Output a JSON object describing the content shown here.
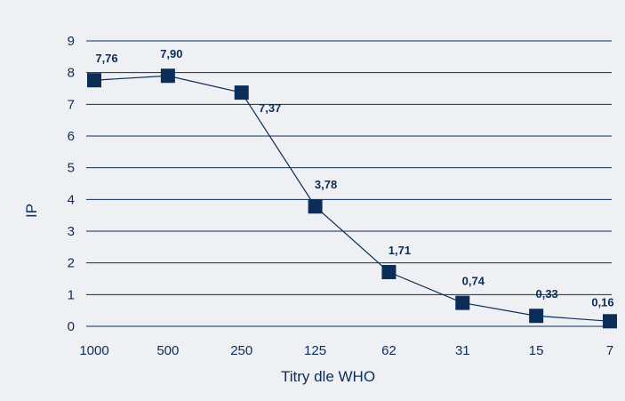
{
  "chart_data": {
    "type": "line",
    "title": "",
    "xlabel": "Titry dle WHO",
    "ylabel": "IP",
    "categories": [
      "1000",
      "500",
      "250",
      "125",
      "62",
      "31",
      "15",
      "7"
    ],
    "series": [
      {
        "values": [
          7.76,
          7.9,
          7.37,
          3.78,
          1.71,
          0.74,
          0.33,
          0.16
        ],
        "data_labels": [
          "7,76",
          "7,90",
          "7,37",
          "3,78",
          "1,71",
          "0,74",
          "0,33",
          "0,16"
        ]
      }
    ],
    "yticks": [
      "0",
      "1",
      "2",
      "3",
      "4",
      "5",
      "6",
      "7",
      "8",
      "9"
    ],
    "ylim": [
      0,
      9
    ],
    "grid": true,
    "legend": "none",
    "colors": {
      "series": "#0c2d57",
      "background": "#eef0f3",
      "grid": "#0c2d57"
    },
    "marker": "square"
  }
}
